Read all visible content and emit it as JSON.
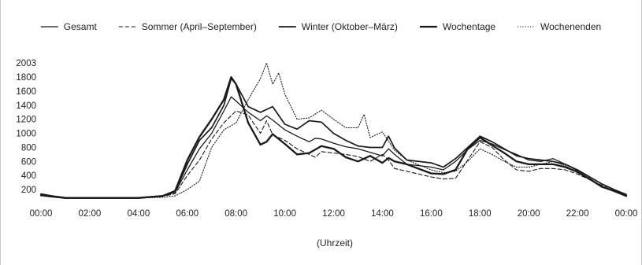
{
  "chart_data": {
    "type": "line",
    "title": "",
    "xlabel": "(Uhrzeit)",
    "ylabel": "",
    "x_tick_labels": [
      "00:00",
      "02:00",
      "04:00",
      "06:00",
      "08:00",
      "10:00",
      "12:00",
      "14:00",
      "16:00",
      "18:00",
      "20:00",
      "22:00",
      "00:00"
    ],
    "x_tick_hours": [
      0,
      2,
      4,
      6,
      8,
      10,
      12,
      14,
      16,
      18,
      20,
      22,
      24
    ],
    "xlim": [
      0,
      24
    ],
    "y_tick_labels": [
      "200",
      "400",
      "600",
      "800",
      "1000",
      "1200",
      "1400",
      "1600",
      "1800",
      "2003"
    ],
    "y_tick_values": [
      200,
      400,
      600,
      800,
      1000,
      1200,
      1400,
      1600,
      1800,
      2003
    ],
    "ylim": [
      55,
      2003
    ],
    "grid": "none",
    "legend_position": "top",
    "x_unit": "hours",
    "series": [
      {
        "name": "Gesamt",
        "style": "solid",
        "color": "#1a1a1a",
        "x": [
          0,
          0.5,
          1,
          2,
          3,
          4,
          5,
          5.5,
          6,
          6.5,
          7,
          7.5,
          7.8,
          8,
          8.5,
          9,
          9.25,
          9.5,
          10,
          10.5,
          11,
          11.25,
          11.5,
          12,
          12.5,
          13,
          13.5,
          14,
          14.25,
          14.5,
          15,
          16,
          16.5,
          17,
          17.5,
          18,
          18.5,
          19,
          19.5,
          20,
          20.5,
          21,
          21.5,
          22,
          22.5,
          23,
          23.5,
          24
        ],
        "y": [
          140,
          110,
          85,
          85,
          85,
          85,
          110,
          160,
          480,
          780,
          1000,
          1320,
          1520,
          1460,
          1300,
          1180,
          1250,
          1190,
          1050,
          960,
          880,
          930,
          920,
          860,
          810,
          780,
          730,
          680,
          780,
          700,
          560,
          520,
          480,
          600,
          770,
          900,
          850,
          770,
          700,
          620,
          600,
          640,
          560,
          470,
          380,
          280,
          200,
          120
        ]
      },
      {
        "name": "Sommer (April–September)",
        "style": "dashed",
        "color": "#1a1a1a",
        "x": [
          0,
          0.5,
          1,
          2,
          3,
          4,
          5,
          5.5,
          6,
          6.5,
          7,
          7.5,
          8,
          8.5,
          9,
          9.25,
          9.5,
          10,
          10.5,
          11,
          11.25,
          11.5,
          12,
          12.5,
          13,
          13.5,
          14,
          14.25,
          14.5,
          15,
          16,
          16.5,
          17,
          17.5,
          18,
          18.5,
          19,
          19.5,
          20,
          20.5,
          21,
          21.5,
          22,
          22.5,
          23,
          23.5,
          24
        ],
        "y": [
          130,
          105,
          85,
          85,
          85,
          85,
          105,
          140,
          400,
          620,
          920,
          1150,
          1320,
          1260,
          1000,
          1180,
          980,
          900,
          780,
          700,
          660,
          740,
          720,
          700,
          670,
          600,
          700,
          620,
          500,
          460,
          380,
          350,
          360,
          620,
          880,
          800,
          620,
          480,
          460,
          500,
          500,
          480,
          420,
          340,
          260,
          180,
          110
        ]
      },
      {
        "name": "Winter (Oktober–März)",
        "style": "solid-medium",
        "color": "#1a1a1a",
        "x": [
          0,
          0.5,
          1,
          2,
          3,
          4,
          5,
          5.5,
          6,
          6.5,
          7,
          7.5,
          7.8,
          8,
          8.5,
          9,
          9.5,
          10,
          10.5,
          11,
          11.5,
          12,
          12.5,
          13,
          13.5,
          14,
          14.25,
          14.5,
          15,
          16,
          16.5,
          17,
          17.5,
          18,
          18.5,
          19,
          19.5,
          20,
          20.5,
          21,
          21.5,
          22,
          22.5,
          23,
          23.5,
          24
        ],
        "y": [
          130,
          105,
          85,
          85,
          85,
          85,
          110,
          170,
          560,
          900,
          1080,
          1400,
          1780,
          1700,
          1380,
          1300,
          1380,
          1130,
          1060,
          1180,
          1160,
          1000,
          900,
          820,
          800,
          800,
          960,
          790,
          620,
          580,
          520,
          640,
          800,
          960,
          880,
          780,
          680,
          640,
          620,
          600,
          560,
          480,
          380,
          280,
          200,
          130
        ]
      },
      {
        "name": "Wochentage",
        "style": "solid-thick",
        "color": "#1a1a1a",
        "x": [
          0,
          0.5,
          1,
          2,
          3,
          4,
          5,
          5.5,
          6,
          6.5,
          7,
          7.5,
          7.8,
          8,
          8.5,
          9,
          9.25,
          9.5,
          10,
          10.5,
          11,
          11.5,
          12,
          12.5,
          13,
          13.5,
          14,
          14.25,
          14.5,
          15,
          16,
          16.5,
          17,
          17.5,
          18,
          18.5,
          19,
          19.5,
          20,
          20.5,
          21,
          21.5,
          22,
          22.5,
          23,
          23.5,
          24
        ],
        "y": [
          120,
          100,
          80,
          80,
          80,
          80,
          110,
          180,
          620,
          950,
          1200,
          1480,
          1800,
          1700,
          1150,
          840,
          880,
          990,
          850,
          700,
          720,
          820,
          780,
          660,
          600,
          680,
          580,
          650,
          600,
          560,
          430,
          420,
          480,
          780,
          940,
          830,
          720,
          600,
          560,
          560,
          560,
          520,
          450,
          350,
          240,
          180,
          110
        ]
      },
      {
        "name": "Wochenenden",
        "style": "dotted",
        "color": "#1a1a1a",
        "x": [
          0,
          0.5,
          1,
          2,
          3,
          4,
          5,
          5.5,
          6,
          6.5,
          7,
          7.5,
          8,
          8.5,
          9,
          9.25,
          9.5,
          9.75,
          10,
          10.5,
          11,
          11.5,
          12,
          12.5,
          13,
          13.25,
          13.5,
          14,
          14.5,
          15,
          16,
          16.5,
          17,
          17.5,
          18,
          18.5,
          19,
          19.5,
          20,
          20.5,
          21,
          21.5,
          22,
          22.5,
          23,
          23.5,
          24
        ],
        "y": [
          110,
          90,
          80,
          80,
          80,
          80,
          90,
          110,
          200,
          320,
          800,
          1050,
          1150,
          1480,
          1780,
          2003,
          1700,
          1860,
          1560,
          1200,
          1220,
          1330,
          1200,
          1080,
          1080,
          1270,
          940,
          1020,
          760,
          620,
          480,
          440,
          460,
          600,
          780,
          700,
          600,
          520,
          520,
          560,
          600,
          540,
          440,
          340,
          240,
          170,
          100
        ]
      }
    ]
  }
}
